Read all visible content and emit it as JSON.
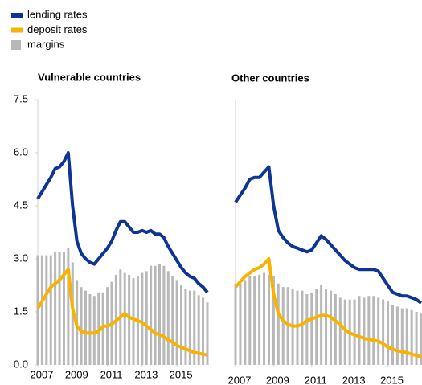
{
  "chart_data": [
    {
      "type": "line",
      "title": "Vulnerable countries",
      "x": [
        2007,
        2007.25,
        2007.5,
        2007.75,
        2008,
        2008.25,
        2008.5,
        2008.75,
        2009,
        2009.25,
        2009.5,
        2009.75,
        2010,
        2010.25,
        2010.5,
        2010.75,
        2011,
        2011.25,
        2011.5,
        2011.75,
        2012,
        2012.25,
        2012.5,
        2012.75,
        2013,
        2013.25,
        2013.5,
        2013.75,
        2014,
        2014.25,
        2014.5,
        2014.75,
        2015,
        2015.25,
        2015.5,
        2015.75,
        2016,
        2016.25,
        2016.5,
        2016.75
      ],
      "xlim": [
        2007,
        2016.75
      ],
      "xticks": [
        2007,
        2009,
        2011,
        2013,
        2015
      ],
      "ylim": [
        0,
        7.5
      ],
      "yticks": [
        {
          "value": 0,
          "label": "0.0"
        },
        1.5,
        {
          "value": 3,
          "label": "3.0"
        },
        4.5,
        {
          "value": 6,
          "label": "6.0"
        },
        7.5
      ],
      "series": [
        {
          "name": "margins",
          "type": "bar",
          "color": "#b8b8b8",
          "values": [
            3.1,
            3.1,
            3.1,
            3.1,
            3.2,
            3.2,
            3.2,
            3.3,
            2.9,
            2.4,
            2.2,
            2.1,
            2.0,
            1.95,
            2.05,
            2.05,
            2.2,
            2.35,
            2.55,
            2.7,
            2.6,
            2.55,
            2.45,
            2.5,
            2.6,
            2.65,
            2.8,
            2.8,
            2.85,
            2.8,
            2.65,
            2.5,
            2.4,
            2.25,
            2.15,
            2.1,
            2.1,
            1.97,
            1.9,
            1.77
          ]
        },
        {
          "name": "lending rates",
          "type": "line",
          "color": "#0d3593",
          "values": [
            4.7,
            4.9,
            5.1,
            5.3,
            5.55,
            5.6,
            5.75,
            6.0,
            4.5,
            3.5,
            3.15,
            3.0,
            2.9,
            2.85,
            3.0,
            3.15,
            3.3,
            3.5,
            3.8,
            4.05,
            4.05,
            3.9,
            3.75,
            3.75,
            3.8,
            3.75,
            3.8,
            3.7,
            3.7,
            3.6,
            3.35,
            3.15,
            2.95,
            2.75,
            2.6,
            2.5,
            2.45,
            2.3,
            2.2,
            2.05
          ]
        },
        {
          "name": "deposit rates",
          "type": "line",
          "color": "#f8b300",
          "values": [
            1.6,
            1.8,
            2.0,
            2.2,
            2.3,
            2.4,
            2.55,
            2.7,
            1.6,
            1.1,
            0.95,
            0.9,
            0.9,
            0.9,
            0.95,
            1.1,
            1.1,
            1.15,
            1.25,
            1.35,
            1.45,
            1.35,
            1.3,
            1.25,
            1.2,
            1.1,
            1.0,
            0.9,
            0.85,
            0.8,
            0.7,
            0.65,
            0.55,
            0.5,
            0.45,
            0.4,
            0.35,
            0.33,
            0.3,
            0.28
          ]
        }
      ]
    },
    {
      "type": "line",
      "title": "Other countries",
      "x": [
        2007,
        2007.25,
        2007.5,
        2007.75,
        2008,
        2008.25,
        2008.5,
        2008.75,
        2009,
        2009.25,
        2009.5,
        2009.75,
        2010,
        2010.25,
        2010.5,
        2010.75,
        2011,
        2011.25,
        2011.5,
        2011.75,
        2012,
        2012.25,
        2012.5,
        2012.75,
        2013,
        2013.25,
        2013.5,
        2013.75,
        2014,
        2014.25,
        2014.5,
        2014.75,
        2015,
        2015.25,
        2015.5,
        2015.75,
        2016,
        2016.25,
        2016.5,
        2016.75
      ],
      "xlim": [
        2007,
        2016.75
      ],
      "xticks": [
        2007,
        2009,
        2011,
        2013,
        2015
      ],
      "ylim": [
        0,
        7.5
      ],
      "series": [
        {
          "type": "bar",
          "color": "#b8b8b8",
          "values": [
            2.3,
            2.3,
            2.4,
            2.5,
            2.5,
            2.55,
            2.6,
            2.55,
            2.5,
            2.3,
            2.2,
            2.2,
            2.15,
            2.1,
            2.1,
            2.0,
            2.05,
            2.15,
            2.25,
            2.15,
            2.1,
            2.0,
            1.9,
            1.85,
            1.85,
            1.85,
            1.95,
            1.9,
            1.95,
            1.95,
            1.9,
            1.85,
            1.8,
            1.7,
            1.65,
            1.6,
            1.6,
            1.55,
            1.5,
            1.45
          ]
        },
        {
          "type": "line",
          "color": "#0d3593",
          "values": [
            4.6,
            4.8,
            5.0,
            5.25,
            5.3,
            5.3,
            5.45,
            5.6,
            4.5,
            3.8,
            3.6,
            3.45,
            3.35,
            3.3,
            3.25,
            3.2,
            3.25,
            3.45,
            3.65,
            3.55,
            3.4,
            3.25,
            3.1,
            2.95,
            2.85,
            2.75,
            2.7,
            2.7,
            2.7,
            2.7,
            2.65,
            2.45,
            2.25,
            2.05,
            2.0,
            1.95,
            1.95,
            1.9,
            1.85,
            1.75
          ]
        },
        {
          "type": "line",
          "color": "#f8b300",
          "values": [
            2.2,
            2.35,
            2.5,
            2.6,
            2.7,
            2.75,
            2.85,
            3.0,
            2.0,
            1.45,
            1.25,
            1.15,
            1.1,
            1.1,
            1.15,
            1.25,
            1.3,
            1.35,
            1.4,
            1.4,
            1.35,
            1.25,
            1.15,
            1.0,
            0.9,
            0.85,
            0.8,
            0.75,
            0.72,
            0.7,
            0.67,
            0.6,
            0.5,
            0.45,
            0.4,
            0.37,
            0.35,
            0.3,
            0.27,
            0.22
          ]
        }
      ]
    }
  ]
}
